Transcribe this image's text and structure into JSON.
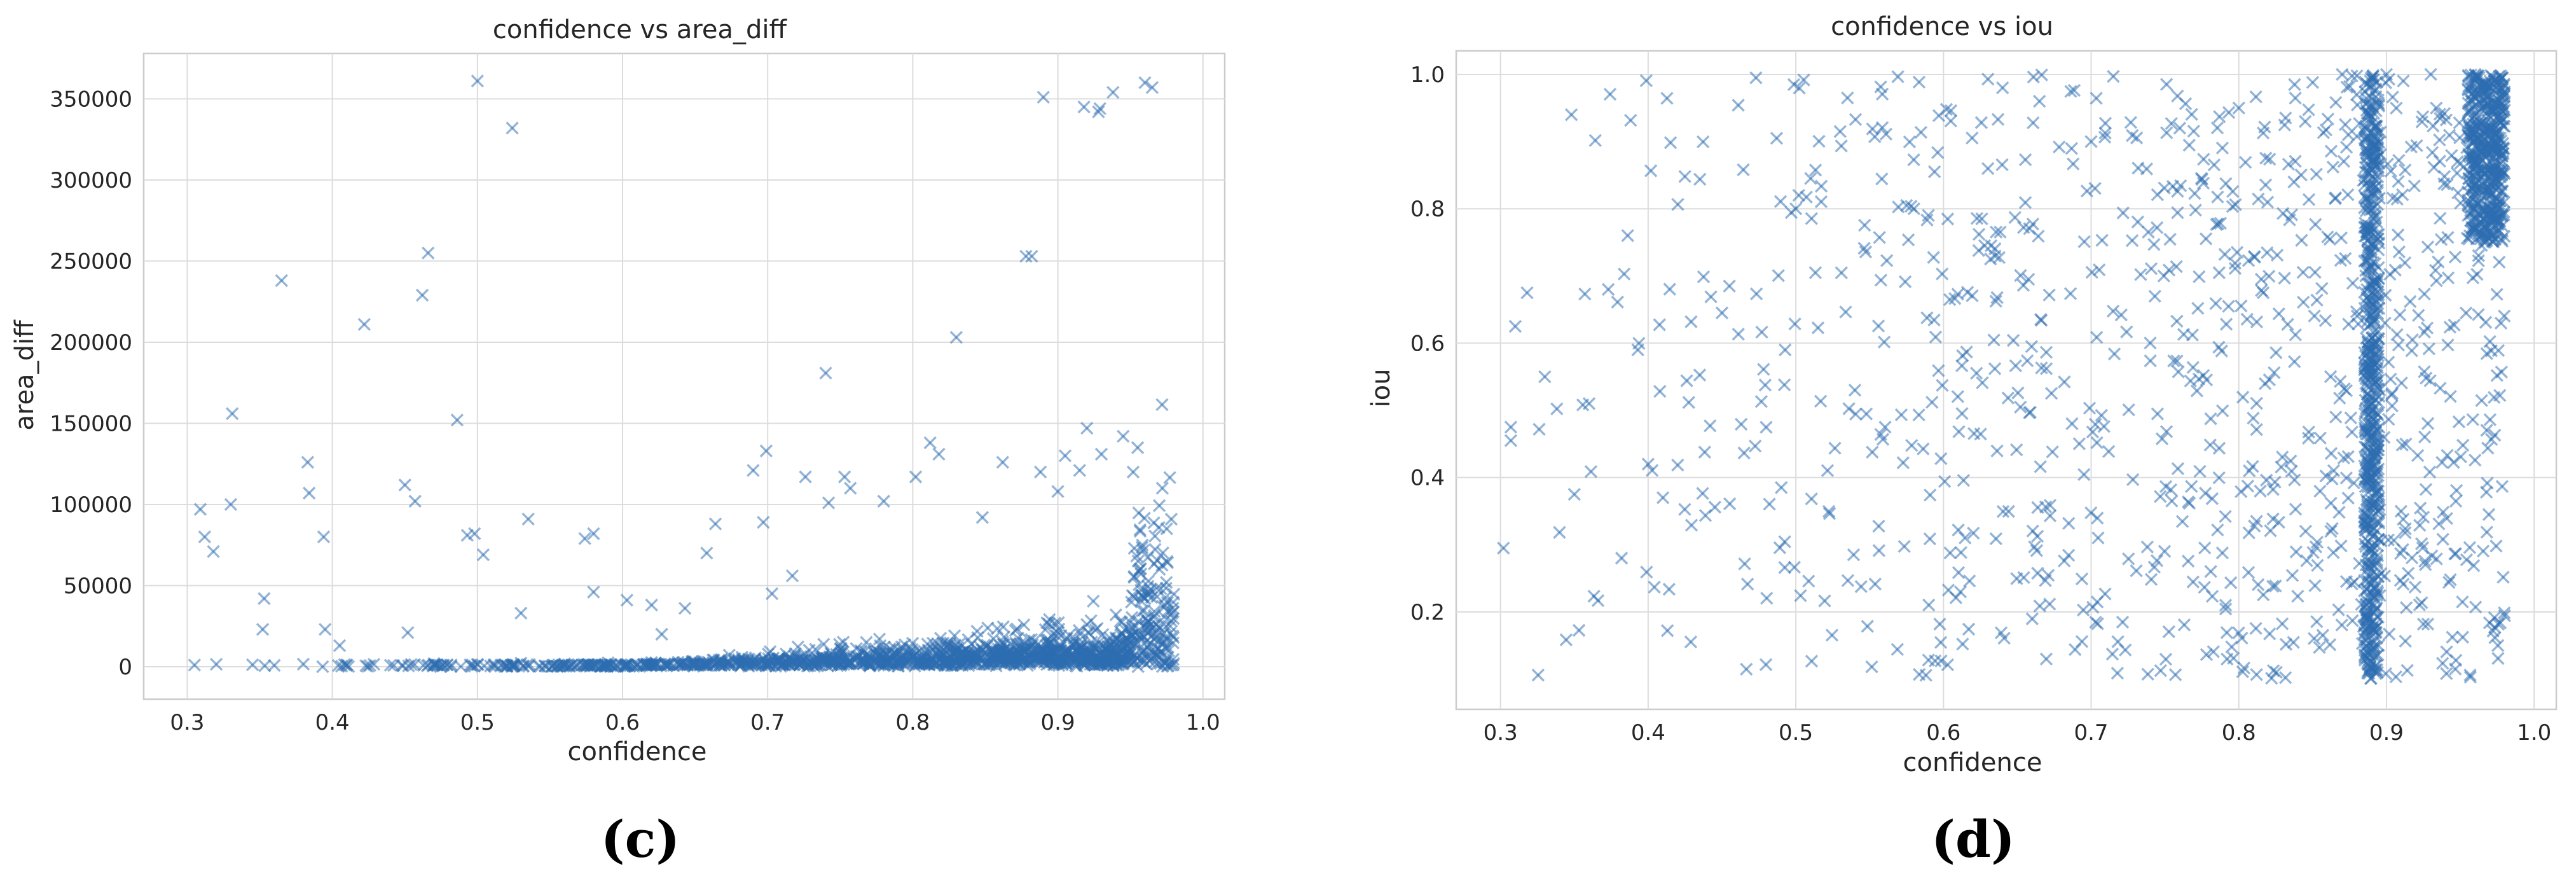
{
  "colors": {
    "marker": "#2b6cb0",
    "grid": "#dcdcdc",
    "frame": "#cccccc",
    "text": "#262626"
  },
  "panels": [
    {
      "label": "(c)"
    },
    {
      "label": "(d)"
    }
  ],
  "chart_data": [
    {
      "type": "scatter",
      "title": "confidence vs area_diff",
      "xlabel": "confidence",
      "ylabel": "area_diff",
      "xlim": [
        0.27,
        1.015
      ],
      "ylim": [
        -20000,
        378000
      ],
      "xticks": [
        0.3,
        0.4,
        0.5,
        0.6,
        0.7,
        0.8,
        0.9,
        1.0
      ],
      "xtick_labels": [
        "0.3",
        "0.4",
        "0.5",
        "0.6",
        "0.7",
        "0.8",
        "0.9",
        "1.0"
      ],
      "yticks": [
        0,
        50000,
        100000,
        150000,
        200000,
        250000,
        300000,
        350000
      ],
      "ytick_labels": [
        "0",
        "50000",
        "100000",
        "150000",
        "200000",
        "250000",
        "300000",
        "350000"
      ],
      "grid": true,
      "marker": "x",
      "alpha": 0.5,
      "points_note": "Several thousand points; most have area_diff near 0 and confidence near 0.85-0.98.",
      "points": [
        [
          0.309,
          97000
        ],
        [
          0.312,
          80000
        ],
        [
          0.318,
          71000
        ],
        [
          0.33,
          100000
        ],
        [
          0.331,
          156000
        ],
        [
          0.353,
          42000
        ],
        [
          0.352,
          23000
        ],
        [
          0.365,
          238000
        ],
        [
          0.383,
          126000
        ],
        [
          0.384,
          107000
        ],
        [
          0.394,
          80000
        ],
        [
          0.395,
          23000
        ],
        [
          0.405,
          13000
        ],
        [
          0.422,
          211000
        ],
        [
          0.45,
          112000
        ],
        [
          0.452,
          21000
        ],
        [
          0.457,
          102000
        ],
        [
          0.462,
          229000
        ],
        [
          0.466,
          255000
        ],
        [
          0.486,
          152000
        ],
        [
          0.493,
          81000
        ],
        [
          0.498,
          82000
        ],
        [
          0.5,
          361000
        ],
        [
          0.504,
          69000
        ],
        [
          0.524,
          332000
        ],
        [
          0.53,
          33000
        ],
        [
          0.535,
          91000
        ],
        [
          0.574,
          79000
        ],
        [
          0.58,
          82000
        ],
        [
          0.58,
          46000
        ],
        [
          0.603,
          41000
        ],
        [
          0.62,
          38000
        ],
        [
          0.627,
          20000
        ],
        [
          0.643,
          36000
        ],
        [
          0.658,
          70000
        ],
        [
          0.664,
          88000
        ],
        [
          0.69,
          121000
        ],
        [
          0.697,
          89000
        ],
        [
          0.699,
          133000
        ],
        [
          0.703,
          45000
        ],
        [
          0.717,
          56000
        ],
        [
          0.726,
          117000
        ],
        [
          0.74,
          181000
        ],
        [
          0.742,
          101000
        ],
        [
          0.753,
          117000
        ],
        [
          0.757,
          110000
        ],
        [
          0.78,
          102000
        ],
        [
          0.802,
          117000
        ],
        [
          0.812,
          138000
        ],
        [
          0.818,
          131000
        ],
        [
          0.83,
          203000
        ],
        [
          0.848,
          92000
        ],
        [
          0.862,
          126000
        ],
        [
          0.878,
          253000
        ],
        [
          0.882,
          253000
        ],
        [
          0.888,
          120000
        ],
        [
          0.89,
          351000
        ],
        [
          0.918,
          345000
        ],
        [
          0.928,
          342000
        ],
        [
          0.929,
          344000
        ],
        [
          0.938,
          354000
        ],
        [
          0.96,
          360000
        ],
        [
          0.965,
          357000
        ],
        [
          0.905,
          130000
        ],
        [
          0.92,
          147000
        ],
        [
          0.93,
          131000
        ],
        [
          0.945,
          142000
        ],
        [
          0.955,
          135000
        ],
        [
          0.9,
          108000
        ],
        [
          0.915,
          121000
        ],
        [
          0.305,
          1000
        ],
        [
          0.32,
          1500
        ],
        [
          0.345,
          1200
        ],
        [
          0.36,
          800
        ],
        [
          0.38,
          1600
        ],
        [
          0.41,
          1200
        ],
        [
          0.44,
          900
        ],
        [
          0.47,
          2000
        ],
        [
          0.5,
          1500
        ],
        [
          0.53,
          2200
        ],
        [
          0.56,
          1800
        ],
        [
          0.59,
          2400
        ],
        [
          0.62,
          2600
        ],
        [
          0.65,
          3100
        ],
        [
          0.68,
          3600
        ],
        [
          0.71,
          4200
        ],
        [
          0.74,
          5200
        ],
        [
          0.77,
          6800
        ],
        [
          0.8,
          8400
        ],
        [
          0.83,
          10500
        ],
        [
          0.86,
          13000
        ],
        [
          0.88,
          16500
        ],
        [
          0.9,
          21000
        ],
        [
          0.92,
          26000
        ],
        [
          0.94,
          32000
        ],
        [
          0.96,
          42000
        ],
        [
          0.97,
          60000
        ],
        [
          0.975,
          85000
        ],
        [
          0.972,
          110000
        ]
      ]
    },
    {
      "type": "scatter",
      "title": "confidence vs iou",
      "xlabel": "confidence",
      "ylabel": "iou",
      "xlim": [
        0.27,
        1.015
      ],
      "ylim": [
        0.055,
        1.035
      ],
      "xticks": [
        0.3,
        0.4,
        0.5,
        0.6,
        0.7,
        0.8,
        0.9,
        1.0
      ],
      "xtick_labels": [
        "0.3",
        "0.4",
        "0.5",
        "0.6",
        "0.7",
        "0.8",
        "0.9",
        "1.0"
      ],
      "yticks": [
        0.2,
        0.4,
        0.6,
        0.8,
        1.0
      ],
      "ytick_labels": [
        "0.2",
        "0.4",
        "0.6",
        "0.8",
        "1.0"
      ],
      "grid": true,
      "marker": "x",
      "alpha": 0.5,
      "points_note": "Several thousand points; dense vertical band at confidence ~0.89 and dense cluster near confidence 0.97, iou 0.8-1.0.",
      "points": [
        [
          0.302,
          0.295
        ],
        [
          0.307,
          0.475
        ],
        [
          0.307,
          0.455
        ],
        [
          0.31,
          0.625
        ],
        [
          0.318,
          0.675
        ],
        [
          0.33,
          0.55
        ],
        [
          0.348,
          0.94
        ],
        [
          0.35,
          0.375
        ],
        [
          0.36,
          0.51
        ],
        [
          0.373,
          0.68
        ],
        [
          0.382,
          0.28
        ],
        [
          0.393,
          0.59
        ],
        [
          0.4,
          0.42
        ],
        [
          0.41,
          0.37
        ],
        [
          0.45,
          0.645
        ],
        [
          0.455,
          0.685
        ],
        [
          0.473,
          0.995
        ],
        [
          0.487,
          0.905
        ],
        [
          0.5,
          0.8
        ],
        [
          0.502,
          0.82
        ],
        [
          0.53,
          0.915
        ],
        [
          0.535,
          0.965
        ],
        [
          0.54,
          0.53
        ],
        [
          0.575,
          0.805
        ],
        [
          0.58,
          0.8
        ],
        [
          0.602,
          0.948
        ],
        [
          0.605,
          0.946
        ],
        [
          0.64,
          0.98
        ],
        [
          0.665,
          0.96
        ],
        [
          0.7,
          0.9
        ],
        [
          0.715,
          0.997
        ],
        [
          0.76,
          0.92
        ],
        [
          0.8,
          0.95
        ],
        [
          0.845,
          0.93
        ],
        [
          0.87,
          1.0
        ],
        [
          0.88,
          0.998
        ],
        [
          0.9,
          1.0
        ],
        [
          0.93,
          1.0
        ],
        [
          0.96,
          1.0
        ],
        [
          0.97,
          0.99
        ]
      ]
    }
  ]
}
